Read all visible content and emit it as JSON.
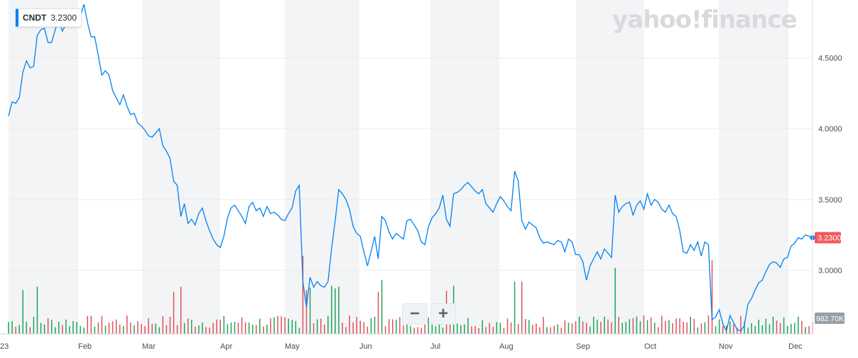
{
  "ticker": {
    "symbol": "CNDT",
    "price": "3.2300"
  },
  "logo": "yahoo!finance",
  "zoom": {
    "minus": "−",
    "plus": "+"
  },
  "colors": {
    "line": "#0081f2",
    "up_volume": "#1ba55c",
    "down_volume": "#e0505a",
    "price_tag": "#f0595e",
    "volume_tag": "#98a0a6",
    "shade": "#f3f4f5"
  },
  "chart_data": {
    "type": "line",
    "title": "",
    "xlabel": "",
    "ylabel": "",
    "ylim": [
      2.55,
      4.9
    ],
    "y_ticks": [
      "4.5000",
      "4.0000",
      "3.5000",
      "3.0000"
    ],
    "x_ticks": [
      "23",
      "Feb",
      "Mar",
      "Apr",
      "May",
      "Jun",
      "Jul",
      "Aug",
      "Sep",
      "Oct",
      "Nov",
      "Dec"
    ],
    "last_price_label": "3.2300",
    "last_volume_label": "982.70K",
    "series": [
      {
        "values": [
          4.09,
          4.19,
          4.18,
          4.22,
          4.4,
          4.48,
          4.43,
          4.44,
          4.66,
          4.7,
          4.71,
          4.61,
          4.61,
          4.7,
          4.77,
          4.69,
          4.74,
          4.77,
          4.77,
          4.78,
          4.79,
          4.88,
          4.75,
          4.65,
          4.65,
          4.52,
          4.38,
          4.41,
          4.38,
          4.27,
          4.22,
          4.17,
          4.24,
          4.16,
          4.1,
          4.11,
          4.04,
          4.02,
          3.99,
          3.95,
          3.94,
          3.97,
          4.0,
          3.88,
          3.84,
          3.79,
          3.63,
          3.6,
          3.38,
          3.47,
          3.33,
          3.36,
          3.32,
          3.4,
          3.44,
          3.35,
          3.28,
          3.22,
          3.18,
          3.16,
          3.24,
          3.37,
          3.44,
          3.46,
          3.42,
          3.38,
          3.33,
          3.45,
          3.48,
          3.42,
          3.44,
          3.38,
          3.45,
          3.4,
          3.41,
          3.39,
          3.36,
          3.35,
          3.4,
          3.44,
          3.56,
          3.6,
          2.92,
          2.74,
          2.95,
          2.88,
          2.92,
          2.89,
          2.88,
          2.92,
          3.15,
          3.35,
          3.57,
          3.54,
          3.5,
          3.43,
          3.31,
          3.26,
          3.24,
          3.13,
          3.03,
          3.13,
          3.24,
          3.08,
          3.38,
          3.35,
          3.27,
          3.22,
          3.26,
          3.24,
          3.22,
          3.35,
          3.36,
          3.32,
          3.28,
          3.2,
          3.18,
          3.31,
          3.37,
          3.4,
          3.44,
          3.53,
          3.36,
          3.31,
          3.54,
          3.55,
          3.57,
          3.6,
          3.62,
          3.59,
          3.56,
          3.54,
          3.57,
          3.47,
          3.44,
          3.41,
          3.47,
          3.52,
          3.49,
          3.45,
          3.42,
          3.7,
          3.63,
          3.35,
          3.29,
          3.34,
          3.32,
          3.3,
          3.23,
          3.19,
          3.2,
          3.19,
          3.18,
          3.21,
          3.2,
          3.13,
          3.22,
          3.2,
          3.11,
          3.11,
          3.06,
          2.93,
          3.03,
          3.08,
          3.13,
          3.08,
          3.15,
          3.12,
          3.09,
          3.53,
          3.41,
          3.45,
          3.47,
          3.48,
          3.39,
          3.46,
          3.49,
          3.43,
          3.54,
          3.46,
          3.5,
          3.48,
          3.43,
          3.41,
          3.46,
          3.4,
          3.38,
          3.28,
          3.13,
          3.12,
          3.18,
          3.14,
          3.2,
          3.1,
          3.2,
          3.18,
          2.65,
          2.67,
          2.72,
          2.62,
          2.57,
          2.68,
          2.63,
          2.58,
          2.57,
          2.61,
          2.76,
          2.8,
          2.86,
          2.91,
          2.93,
          2.99,
          3.04,
          3.06,
          3.05,
          3.02,
          3.08,
          3.09,
          3.17,
          3.19,
          3.23,
          3.22,
          3.25,
          3.24,
          3.23
        ]
      }
    ]
  }
}
